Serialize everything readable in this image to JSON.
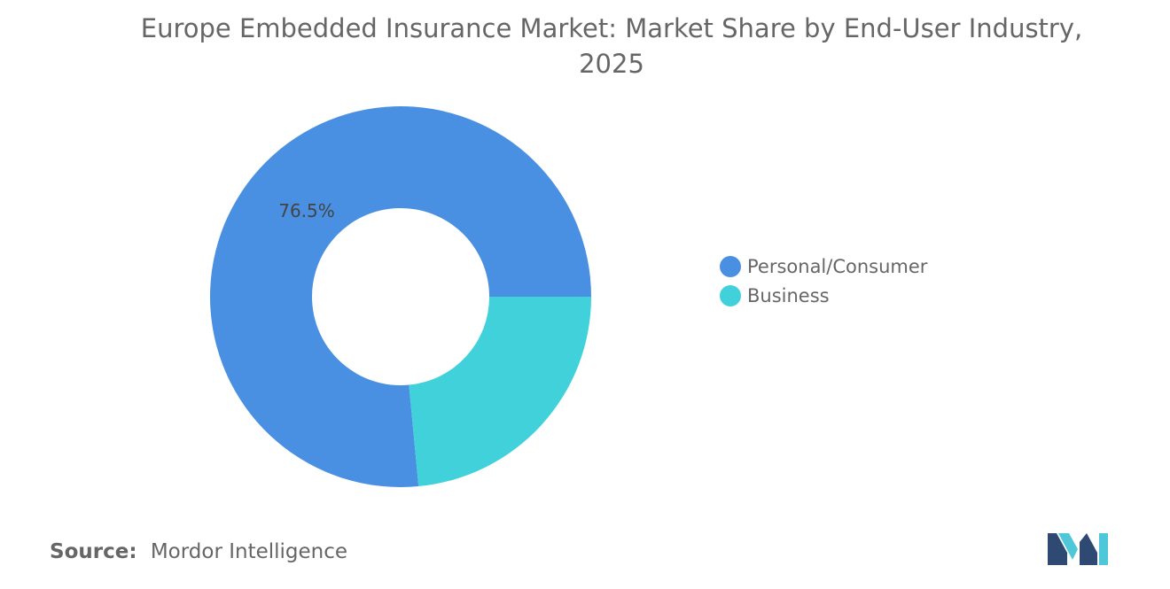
{
  "chart_data": {
    "type": "pie",
    "title_lines": [
      "Europe Embedded Insurance Market: Market Share by End-User Industry,",
      "2025"
    ],
    "categories": [
      "Personal/Consumer",
      "Business"
    ],
    "values": [
      76.5,
      23.5
    ],
    "unit": "%",
    "data_labels": [
      "76.5%",
      ""
    ],
    "colors": [
      "#4a90e2",
      "#40d1db"
    ],
    "legend_position": "right",
    "donut": true
  },
  "source": {
    "label": "Source:",
    "text": "Mordor Intelligence"
  },
  "logo": {
    "icon": "mordor-intelligence-logo",
    "colors": [
      "#2e4a73",
      "#4ec8d8"
    ]
  }
}
